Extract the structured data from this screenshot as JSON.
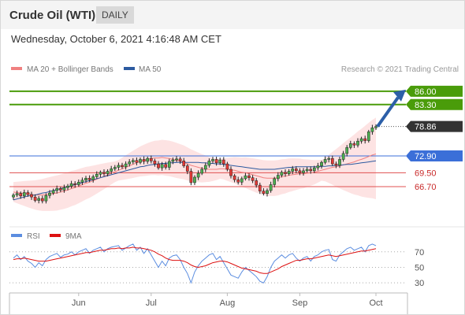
{
  "header": {
    "title": "Crude Oil (WTI)",
    "timeframe": "DAILY",
    "datetime": "Wednesday, October 6, 2021 4:16:48 AM CET"
  },
  "colors": {
    "green": "#4a9c0a",
    "blue": "#3b6fd8",
    "red": "#e05050",
    "price": "#333333",
    "arrow": "#2c5fa8",
    "ma20": "#f08080",
    "ma50": "#2c5aa0",
    "rsi": "#5b8de0",
    "rsi_ma": "#dd1111"
  },
  "chart_data": [
    {
      "type": "candlestick",
      "title": "",
      "xlabel": "",
      "ylabel": "",
      "legend": [
        {
          "label": "MA 20 + Bollinger Bands",
          "color": "#f08080"
        },
        {
          "label": "MA 50",
          "color": "#2c5aa0"
        }
      ],
      "credit": "Research © 2021 Trading Central",
      "x_tick_labels": [
        "Jun",
        "Jul",
        "Aug",
        "Sep",
        "Oct"
      ],
      "x_ticks_index": [
        18,
        38,
        59,
        79,
        100
      ],
      "ylim": [
        60,
        89
      ],
      "levels": [
        {
          "value": 86.0,
          "label": "86.00",
          "color": "green",
          "style": "solid"
        },
        {
          "value": 83.3,
          "label": "83.30",
          "color": "green",
          "style": "solid"
        },
        {
          "value": 78.86,
          "label": "78.86",
          "color": "price",
          "style": "dotted"
        },
        {
          "value": 72.9,
          "label": "72.90",
          "color": "blue",
          "style": "solid"
        },
        {
          "value": 69.5,
          "label": "69.50",
          "color": "red",
          "style": "solid"
        },
        {
          "value": 66.7,
          "label": "66.70",
          "color": "red",
          "style": "solid"
        }
      ],
      "arrow": {
        "from": 78.86,
        "to": 86.0
      },
      "closes": [
        65.0,
        65.3,
        64.8,
        65.5,
        65.1,
        64.6,
        63.9,
        64.3,
        63.8,
        64.9,
        65.4,
        65.9,
        66.3,
        66.0,
        66.5,
        66.8,
        67.3,
        67.1,
        67.6,
        68.0,
        68.4,
        68.1,
        68.7,
        69.2,
        69.6,
        69.3,
        69.8,
        70.3,
        70.6,
        71.0,
        70.7,
        71.3,
        71.7,
        72.0,
        71.6,
        72.2,
        71.8,
        72.4,
        71.9,
        71.3,
        70.5,
        71.2,
        70.6,
        71.8,
        72.1,
        72.3,
        71.9,
        70.9,
        69.8,
        67.5,
        68.6,
        69.4,
        70.2,
        71.0,
        71.9,
        72.2,
        71.5,
        72.1,
        71.3,
        70.2,
        68.9,
        68.1,
        67.6,
        68.3,
        68.9,
        68.5,
        67.9,
        67.0,
        65.8,
        65.3,
        65.9,
        67.1,
        68.3,
        69.0,
        69.6,
        69.3,
        69.8,
        70.3,
        69.9,
        69.5,
        69.9,
        70.2,
        69.9,
        70.5,
        70.9,
        71.6,
        72.2,
        72.4,
        71.3,
        71.0,
        72.2,
        73.4,
        74.6,
        75.4,
        75.1,
        75.9,
        76.4,
        76.0,
        77.8,
        78.6,
        78.86
      ],
      "ma50": [
        64.0,
        64.2,
        64.4,
        64.6,
        64.8,
        64.9,
        65.0,
        65.2,
        65.4,
        65.5,
        65.7,
        65.9,
        66.1,
        66.3,
        66.5,
        66.7,
        66.9,
        67.1,
        67.3,
        67.5,
        67.7,
        67.9,
        68.1,
        68.3,
        68.5,
        68.7,
        68.9,
        69.1,
        69.3,
        69.5,
        69.7,
        69.9,
        70.1,
        70.3,
        70.5,
        70.7,
        70.8,
        71.0,
        71.1,
        71.2,
        71.3,
        71.4,
        71.4,
        71.5,
        71.5,
        71.6,
        71.6,
        71.6,
        71.6,
        71.6,
        71.6,
        71.6,
        71.5,
        71.5,
        71.4,
        71.4,
        71.3,
        71.3,
        71.2,
        71.1,
        71.0,
        70.9,
        70.8,
        70.7,
        70.6,
        70.5,
        70.4,
        70.3,
        70.2,
        70.2,
        70.2,
        70.2,
        70.2,
        70.3,
        70.4,
        70.5,
        70.6,
        70.6,
        70.7,
        70.7,
        70.7,
        70.7,
        70.7,
        70.7,
        70.7,
        70.8,
        70.8,
        70.9,
        70.9,
        71.0,
        71.0,
        71.1,
        71.2,
        71.2,
        71.3,
        71.4,
        71.5,
        71.6,
        71.7,
        71.8,
        71.9
      ],
      "ma20": [
        65.6,
        65.5,
        65.4,
        65.3,
        65.2,
        65.1,
        65.0,
        65.0,
        65.0,
        65.1,
        65.2,
        65.3,
        65.4,
        65.6,
        65.8,
        66.0,
        66.3,
        66.5,
        66.8,
        67.1,
        67.4,
        67.6,
        67.9,
        68.2,
        68.5,
        68.8,
        69.1,
        69.4,
        69.7,
        70.0,
        70.3,
        70.6,
        70.9,
        71.2,
        71.5,
        71.8,
        72.0,
        72.2,
        72.4,
        72.5,
        72.5,
        72.6,
        72.5,
        72.4,
        72.2,
        72.0,
        71.8,
        71.6,
        71.3,
        71.0,
        70.8,
        70.6,
        70.4,
        70.3,
        70.2,
        70.2,
        70.2,
        70.3,
        70.3,
        70.2,
        70.1,
        70.0,
        69.8,
        69.6,
        69.5,
        69.3,
        69.1,
        68.9,
        68.7,
        68.5,
        68.4,
        68.4,
        68.4,
        68.5,
        68.7,
        68.8,
        69.0,
        69.1,
        69.2,
        69.3,
        69.3,
        69.4,
        69.5,
        69.6,
        69.8,
        70.0,
        70.2,
        70.4,
        70.6,
        70.7,
        70.9,
        71.1,
        71.3,
        71.5,
        71.7,
        72.0,
        72.2,
        72.5,
        72.8,
        73.1,
        73.3
      ]
    },
    {
      "type": "line",
      "title": "",
      "legend": [
        {
          "label": "RSI",
          "color": "#5b8de0"
        },
        {
          "label": "9MA",
          "color": "#dd1111"
        }
      ],
      "ylim": [
        20,
        84
      ],
      "y_ticks": [
        30,
        50,
        70
      ],
      "rsi": [
        62,
        66,
        60,
        64,
        58,
        55,
        50,
        56,
        52,
        60,
        64,
        66,
        68,
        63,
        66,
        67,
        70,
        66,
        70,
        72,
        74,
        68,
        72,
        74,
        76,
        70,
        74,
        76,
        77,
        78,
        72,
        75,
        78,
        80,
        72,
        76,
        68,
        74,
        66,
        58,
        50,
        58,
        52,
        62,
        65,
        66,
        60,
        50,
        42,
        30,
        44,
        52,
        58,
        62,
        66,
        68,
        60,
        64,
        56,
        48,
        40,
        38,
        36,
        44,
        50,
        46,
        42,
        38,
        32,
        30,
        38,
        50,
        58,
        62,
        66,
        62,
        66,
        68,
        62,
        58,
        62,
        64,
        58,
        64,
        66,
        70,
        72,
        73,
        60,
        58,
        66,
        70,
        74,
        76,
        72,
        74,
        76,
        70,
        78,
        80,
        78
      ],
      "rsi_ma": [
        60,
        61,
        61,
        62,
        61,
        60,
        59,
        58,
        58,
        58,
        59,
        60,
        61,
        62,
        63,
        64,
        65,
        66,
        67,
        68,
        69,
        69,
        70,
        71,
        72,
        72,
        73,
        74,
        74,
        75,
        74,
        75,
        75,
        76,
        75,
        75,
        74,
        73,
        72,
        70,
        67,
        65,
        62,
        60,
        59,
        59,
        59,
        58,
        56,
        53,
        51,
        50,
        51,
        52,
        54,
        56,
        57,
        58,
        58,
        57,
        55,
        53,
        51,
        49,
        48,
        47,
        46,
        45,
        43,
        42,
        42,
        44,
        46,
        48,
        51,
        53,
        55,
        57,
        59,
        59,
        60,
        61,
        61,
        62,
        63,
        64,
        65,
        66,
        65,
        64,
        65,
        66,
        67,
        68,
        69,
        70,
        71,
        71,
        72,
        73,
        74
      ]
    }
  ]
}
